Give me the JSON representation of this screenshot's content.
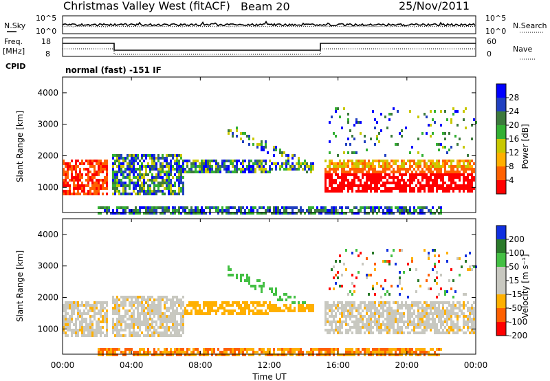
{
  "header": {
    "title": "Christmas Valley West (fitACF)",
    "beam": "Beam 20",
    "date": "25/Nov/2011"
  },
  "panels": {
    "nsky_label": "N.Sky",
    "nsearch_label": "N.Search",
    "freq_label_1": "Freq.",
    "freq_label_2": "[MHz]",
    "nave_label": "Nave",
    "cpid_label": "CPID",
    "cpid_text": "normal (fast) -151 IF",
    "noise_ticks_left": [
      "10^5",
      "10^0"
    ],
    "noise_ticks_right": [
      "10^5",
      "10^0"
    ],
    "freq_ticks": [
      "18",
      "8"
    ],
    "nave_ticks": [
      "60",
      "0"
    ]
  },
  "colors": {
    "power_scale": [
      "#0000ff",
      "#2040c0",
      "#3c7a3c",
      "#33b033",
      "#c8c800",
      "#ffb000",
      "#ff6000",
      "#ff0000"
    ],
    "velocity_scale": [
      "#1030e0",
      "#2a7a2a",
      "#44c044",
      "#c8c8c0",
      "#c8c8c0",
      "#ffb000",
      "#ff6000",
      "#ff0000"
    ]
  },
  "chart_data": [
    {
      "type": "heatmap",
      "name": "power",
      "ylabel": "Slant Range [km]",
      "yticks": [
        "4000",
        "3000",
        "2000",
        "1000"
      ],
      "ylim": [
        200,
        4500
      ],
      "colorbar_label": "Power [dB]",
      "colorbar_ticks": [
        "28",
        "24",
        "20",
        "16",
        "12",
        "8",
        "4"
      ]
    },
    {
      "type": "heatmap",
      "name": "velocity",
      "ylabel": "Slant Range [km]",
      "yticks": [
        "4000",
        "3000",
        "2000",
        "1000"
      ],
      "ylim": [
        200,
        4500
      ],
      "colorbar_label": "Velocity [m s⁻¹]",
      "colorbar_ticks": [
        "200",
        "100",
        "50",
        "15",
        "-15",
        "-50",
        "-100",
        "-200"
      ]
    }
  ],
  "x_axis": {
    "xlabel": "Time UT",
    "xticks": [
      "00:00",
      "04:00",
      "08:00",
      "12:00",
      "16:00",
      "20:00",
      "00:00"
    ]
  }
}
